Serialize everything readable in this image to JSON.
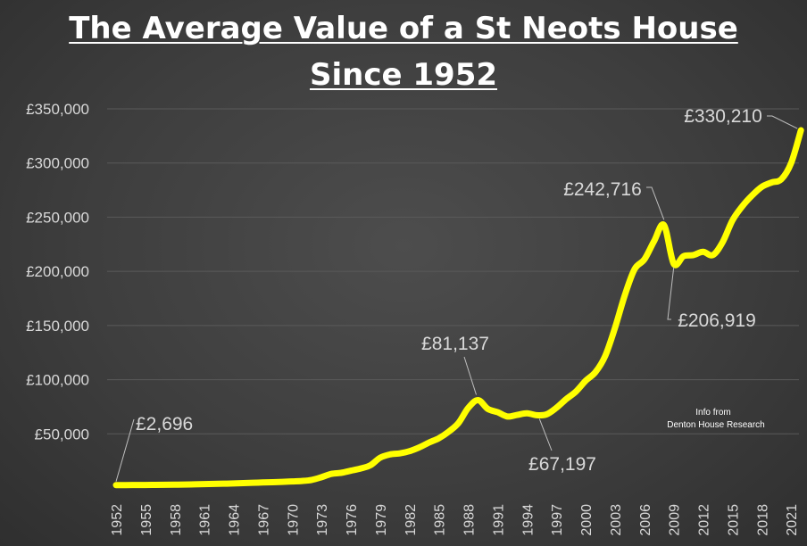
{
  "title_line1": "The Average Value of a St Neots House",
  "title_line2": "Since 1952",
  "source_note_line1": "Info from",
  "source_note_line2": "Denton House Research",
  "colors": {
    "line": "#ffff00",
    "grid": "#5a5a5a",
    "text": "#d9d9d9",
    "background": "#3e3e3e"
  },
  "chart_data": {
    "type": "line",
    "title": "The Average Value of a St Neots House Since 1952",
    "xlabel": "",
    "ylabel": "",
    "ylim": [
      0,
      350000
    ],
    "grid": true,
    "ytick_labels": [
      "£50,000",
      "£100,000",
      "£150,000",
      "£200,000",
      "£250,000",
      "£300,000",
      "£350,000"
    ],
    "ytick_values": [
      50000,
      100000,
      150000,
      200000,
      250000,
      300000,
      350000
    ],
    "xtick_labels": [
      "1952",
      "1955",
      "1958",
      "1961",
      "1964",
      "1967",
      "1970",
      "1973",
      "1976",
      "1979",
      "1982",
      "1985",
      "1988",
      "1991",
      "1994",
      "1997",
      "2000",
      "2003",
      "2006",
      "2009",
      "2012",
      "2015",
      "2018",
      "2021"
    ],
    "x": [
      1952,
      1953,
      1954,
      1955,
      1956,
      1957,
      1958,
      1959,
      1960,
      1961,
      1962,
      1963,
      1964,
      1965,
      1966,
      1967,
      1968,
      1969,
      1970,
      1971,
      1972,
      1973,
      1974,
      1975,
      1976,
      1977,
      1978,
      1979,
      1980,
      1981,
      1982,
      1983,
      1984,
      1985,
      1986,
      1987,
      1988,
      1989,
      1990,
      1991,
      1992,
      1993,
      1994,
      1995,
      1996,
      1997,
      1998,
      1999,
      2000,
      2001,
      2002,
      2003,
      2004,
      2005,
      2006,
      2007,
      2008,
      2009,
      2010,
      2011,
      2012,
      2013,
      2014,
      2015,
      2016,
      2017,
      2018,
      2019,
      2020,
      2021,
      2022
    ],
    "y": [
      2696,
      2700,
      2750,
      2800,
      2900,
      3000,
      3100,
      3200,
      3400,
      3600,
      3800,
      4000,
      4200,
      4500,
      4800,
      5100,
      5400,
      5700,
      6100,
      6500,
      7500,
      10000,
      13000,
      14000,
      16000,
      18000,
      21000,
      28000,
      31000,
      32000,
      34000,
      37500,
      42000,
      46000,
      52000,
      60000,
      74000,
      81137,
      73000,
      70000,
      66000,
      67500,
      69000,
      67197,
      68000,
      74000,
      82000,
      89000,
      99000,
      107000,
      122000,
      148000,
      178000,
      202000,
      211000,
      228000,
      242716,
      206919,
      214000,
      215000,
      218000,
      215000,
      227000,
      247000,
      260000,
      270000,
      278000,
      282000,
      285000,
      300000,
      330210
    ],
    "annotations": [
      {
        "label": "£2,696",
        "x": 1952,
        "y": 2696
      },
      {
        "label": "£81,137",
        "x": 1989,
        "y": 81137
      },
      {
        "label": "£67,197",
        "x": 1995,
        "y": 67197
      },
      {
        "label": "£242,716",
        "x": 2008,
        "y": 242716
      },
      {
        "label": "£206,919",
        "x": 2009,
        "y": 206919
      },
      {
        "label": "£330,210",
        "x": 2022,
        "y": 330210
      }
    ]
  }
}
